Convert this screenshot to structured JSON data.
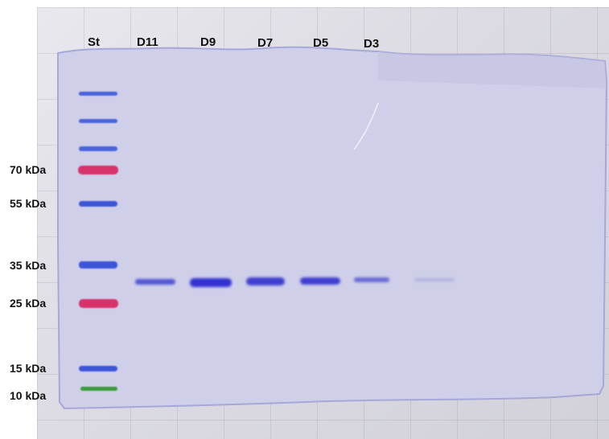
{
  "gel": {
    "lanes": [
      {
        "label": "St"
      },
      {
        "label": "D11"
      },
      {
        "label": "D9"
      },
      {
        "label": "D7"
      },
      {
        "label": "D5"
      },
      {
        "label": "D3"
      }
    ],
    "markers": [
      {
        "label": "70 kDa",
        "color": "#d8336b"
      },
      {
        "label": "55 kDa",
        "color": "#3d56d8"
      },
      {
        "label": "35 kDa",
        "color": "#3d56d8"
      },
      {
        "label": "25 kDa",
        "color": "#d8336b"
      },
      {
        "label": "15 kDa",
        "color": "#3d56d8"
      },
      {
        "label": "10 kDa",
        "color": "#3a9a3a"
      }
    ],
    "gel_color": "#cfcfe9",
    "sample_band_color": "#3b3fd0"
  }
}
